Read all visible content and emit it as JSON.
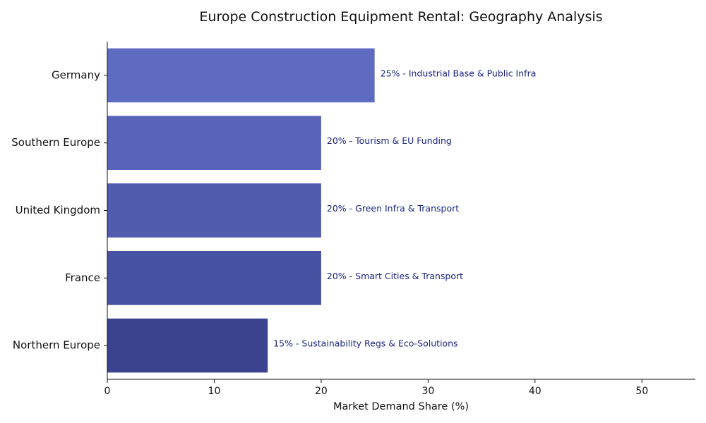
{
  "chart_data": {
    "type": "bar",
    "orientation": "horizontal",
    "title": "Europe Construction Equipment Rental: Geography Analysis",
    "xlabel": "Market Demand Share (%)",
    "ylabel": "",
    "xlim": [
      0,
      55
    ],
    "xticks": [
      0,
      10,
      20,
      30,
      40,
      50
    ],
    "grid": false,
    "legend": "none",
    "categories": [
      "Germany",
      "Southern Europe",
      "United Kingdom",
      "France",
      "Northern Europe"
    ],
    "values": [
      25,
      20,
      20,
      20,
      15
    ],
    "labels": [
      "25% - Industrial Base & Public Infra",
      "20% - Tourism & EU Funding",
      "20% - Green Infra & Transport",
      "20% - Smart Cities & Transport",
      "15% - Sustainability Regs & Eco-Solutions"
    ],
    "colors": [
      "#5f6bc1",
      "#5863b9",
      "#505bae",
      "#4751a1",
      "#3c438e"
    ],
    "label_color": "#1a237e"
  }
}
